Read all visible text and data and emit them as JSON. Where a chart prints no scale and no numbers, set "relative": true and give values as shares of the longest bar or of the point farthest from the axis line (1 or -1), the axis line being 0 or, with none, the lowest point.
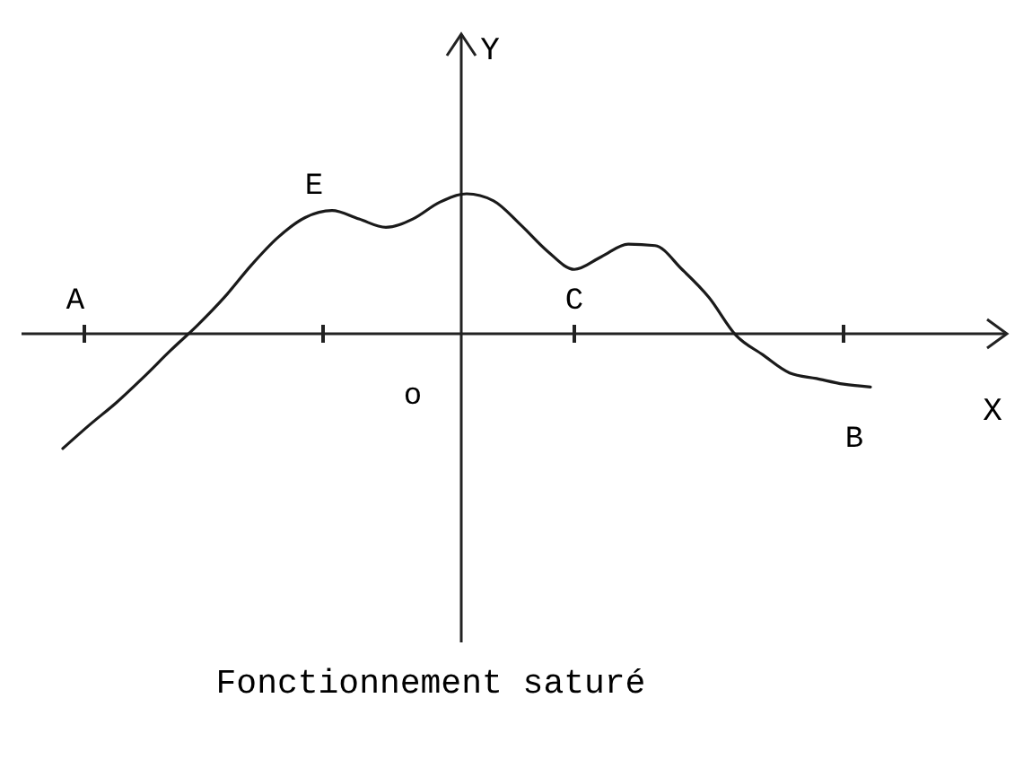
{
  "chart_data": {
    "type": "line",
    "title": "Fonctionnement saturé",
    "xlabel": "X",
    "ylabel": "Y",
    "relative": true,
    "categories": [
      null,
      null,
      null,
      null,
      null,
      null,
      null,
      null,
      null,
      null,
      null,
      null,
      null,
      null,
      null,
      null,
      null,
      null,
      null,
      null,
      null,
      null,
      null,
      null,
      null,
      null,
      null,
      null,
      null,
      null,
      null
    ],
    "series": [
      {
        "color": "#1a1a1a",
        "values": [
          -0.82,
          -0.65,
          -0.49,
          -0.31,
          -0.12,
          0.06,
          0.26,
          0.49,
          0.69,
          0.83,
          0.88,
          0.82,
          0.76,
          0.82,
          0.94,
          1,
          0.95,
          0.78,
          0.59,
          0.46,
          0.55,
          0.64,
          0.63,
          0.46,
          0.26,
          -0.01,
          -0.15,
          -0.28,
          -0.32,
          -0.36,
          -0.38
        ]
      }
    ],
    "annotations": [
      "A",
      "E",
      "C",
      "B",
      "o"
    ]
  }
}
